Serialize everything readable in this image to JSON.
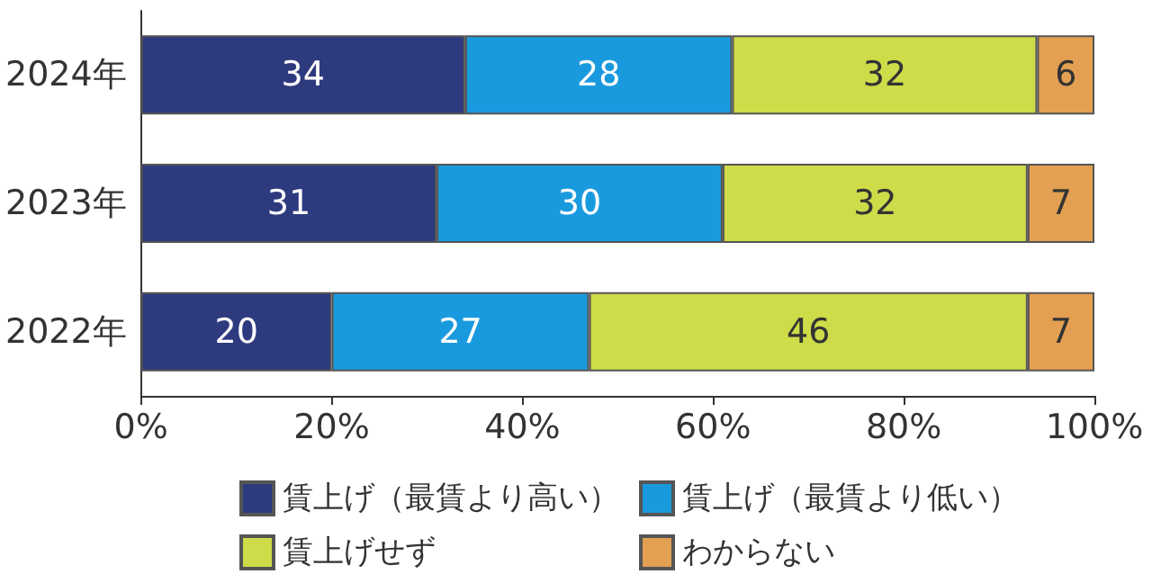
{
  "chart_data": {
    "type": "bar",
    "orientation": "horizontal",
    "stacked": true,
    "categories": [
      "2024年",
      "2023年",
      "2022年"
    ],
    "series": [
      {
        "name": "賃上げ（最賃より高い）",
        "color": "#2e3a7e",
        "values": [
          34,
          31,
          20
        ]
      },
      {
        "name": "賃上げ（最賃より低い）",
        "color": "#1a9ade",
        "values": [
          28,
          30,
          27
        ]
      },
      {
        "name": "賃上げせず",
        "color": "#cddc48",
        "values": [
          32,
          32,
          46
        ]
      },
      {
        "name": "わからない",
        "color": "#e3a052",
        "values": [
          6,
          7,
          7
        ]
      }
    ],
    "xlim": [
      0,
      100
    ],
    "xticks": [
      {
        "value": 0,
        "label": "0%"
      },
      {
        "value": 20,
        "label": "20%"
      },
      {
        "value": 40,
        "label": "40%"
      },
      {
        "value": 60,
        "label": "60%"
      },
      {
        "value": 80,
        "label": "80%"
      },
      {
        "value": 100,
        "label": "100%"
      }
    ],
    "data_labels": true,
    "grid": false,
    "legend": "bottom"
  }
}
